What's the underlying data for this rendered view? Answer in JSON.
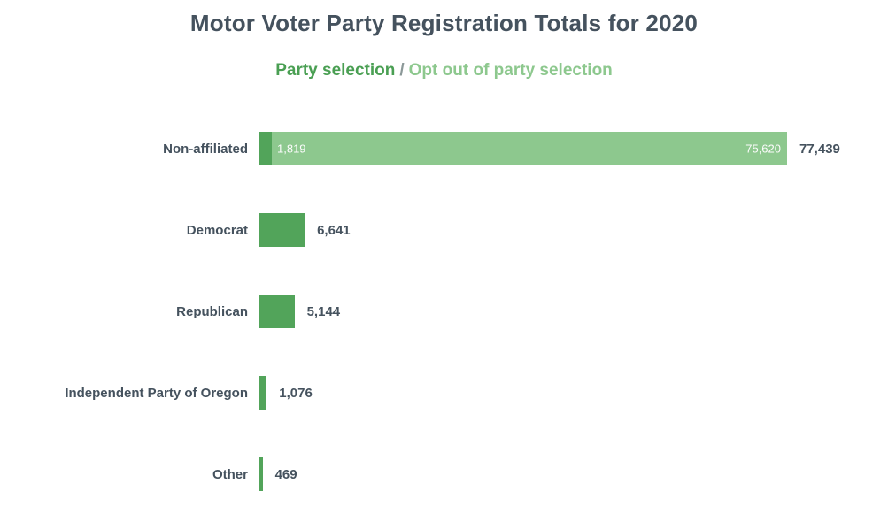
{
  "title": "Motor Voter Party Registration Totals for 2020",
  "legend": {
    "party_selection_label": "Party selection",
    "separator": "/",
    "opt_out_label": "Opt out of party selection"
  },
  "colors": {
    "party_selection_bar": "#52a45a",
    "opt_out_bar": "#8dc88e",
    "heading_text": "#45525e",
    "legend_party_selection_text": "#4a9f53",
    "legend_opt_out_text": "#8dc88e",
    "legend_separator_text": "#8b9898",
    "axis_line": "#e5e5e5",
    "bar_inner_label_text": "#fcfcfc"
  },
  "chart_data": {
    "type": "bar",
    "orientation": "horizontal",
    "stacked": true,
    "grid": false,
    "legend_position": "top",
    "title": "Motor Voter Party Registration Totals for 2020",
    "categories": [
      "Non-affiliated",
      "Democrat",
      "Republican",
      "Independent Party of Oregon",
      "Other"
    ],
    "series": [
      {
        "name": "Party selection",
        "values": [
          1819,
          6641,
          5144,
          1076,
          469
        ],
        "values_formatted": [
          "1,819",
          "6,641",
          "5,144",
          "1,076",
          "469"
        ]
      },
      {
        "name": "Opt out of party selection",
        "values": [
          75620,
          0,
          0,
          0,
          0
        ],
        "values_formatted": [
          "75,620",
          "",
          "",
          "",
          ""
        ]
      }
    ],
    "totals": [
      77439,
      6641,
      5144,
      1076,
      469
    ],
    "totals_formatted": [
      "77,439",
      "6,641",
      "5,144",
      "1,076",
      "469"
    ],
    "xlim": [
      0,
      77439
    ]
  }
}
